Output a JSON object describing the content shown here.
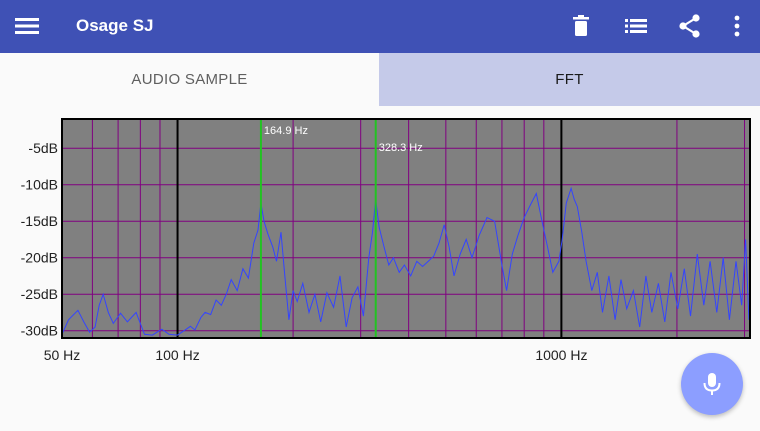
{
  "app": {
    "title": "Osage SJ",
    "colors": {
      "primary": "#3f51b5",
      "tab_selected_bg": "#c5cae9",
      "fab": "#8c9eff",
      "plot_bg": "#808080",
      "trace": "#3344ff",
      "grid": "#800080",
      "marker": "#22c322"
    }
  },
  "toolbar": {
    "menu_icon": "menu-icon",
    "actions": [
      "delete-icon",
      "list-icon",
      "share-icon",
      "more-vert-icon"
    ]
  },
  "tabs": [
    {
      "label": "AUDIO SAMPLE",
      "selected": false
    },
    {
      "label": "FFT",
      "selected": true
    }
  ],
  "fab": {
    "icon": "mic-icon"
  },
  "chart_data": {
    "type": "line",
    "title": "",
    "xscale": "log",
    "xlim": [
      50,
      3100
    ],
    "ylim": [
      -31,
      -1
    ],
    "x_tick_labels": [
      {
        "value": 50,
        "label": "50 Hz"
      },
      {
        "value": 100,
        "label": "100 Hz"
      },
      {
        "value": 1000,
        "label": "1000 Hz"
      }
    ],
    "y_tick_labels": [
      {
        "value": -5,
        "label": "-5dB"
      },
      {
        "value": -10,
        "label": "-10dB"
      },
      {
        "value": -15,
        "label": "-15dB"
      },
      {
        "value": -20,
        "label": "-20dB"
      },
      {
        "value": -25,
        "label": "-25dB"
      },
      {
        "value": -30,
        "label": "-30dB"
      }
    ],
    "markers": [
      {
        "freq": 164.9,
        "label": "164.9 Hz"
      },
      {
        "freq": 328.3,
        "label": "328.3 Hz"
      }
    ],
    "decade_lines": [
      100,
      1000
    ],
    "grid": true,
    "series": [
      {
        "points": [
          [
            50,
            -30.5
          ],
          [
            52,
            -28.5
          ],
          [
            55,
            -27.2
          ],
          [
            57,
            -28.8
          ],
          [
            59,
            -30.2
          ],
          [
            61,
            -29.5
          ],
          [
            62.5,
            -26.5
          ],
          [
            64,
            -25.0
          ],
          [
            66,
            -27.5
          ],
          [
            68,
            -29.0
          ],
          [
            71,
            -27.6
          ],
          [
            74,
            -28.8
          ],
          [
            78,
            -27.5
          ],
          [
            82,
            -30.5
          ],
          [
            86,
            -30.6
          ],
          [
            91,
            -29.8
          ],
          [
            95,
            -30.5
          ],
          [
            100,
            -30.6
          ],
          [
            104,
            -30.0
          ],
          [
            108,
            -29.4
          ],
          [
            111,
            -29.9
          ],
          [
            115,
            -28.2
          ],
          [
            118,
            -27.5
          ],
          [
            122,
            -27.8
          ],
          [
            126,
            -25.8
          ],
          [
            130,
            -26.5
          ],
          [
            134,
            -25.0
          ],
          [
            138,
            -23.0
          ],
          [
            143,
            -24.5
          ],
          [
            148,
            -21.5
          ],
          [
            153,
            -22.8
          ],
          [
            158,
            -18.0
          ],
          [
            162,
            -16.2
          ],
          [
            164.9,
            -12.5
          ],
          [
            168,
            -15.0
          ],
          [
            172,
            -16.8
          ],
          [
            177,
            -18.5
          ],
          [
            181,
            -20.5
          ],
          [
            186,
            -16.5
          ],
          [
            190,
            -22.0
          ],
          [
            195,
            -28.5
          ],
          [
            200,
            -24.5
          ],
          [
            205,
            -26.0
          ],
          [
            212,
            -23.5
          ],
          [
            220,
            -27.5
          ],
          [
            228,
            -25.0
          ],
          [
            236,
            -28.8
          ],
          [
            245,
            -24.8
          ],
          [
            255,
            -26.8
          ],
          [
            265,
            -22.5
          ],
          [
            275,
            -29.5
          ],
          [
            285,
            -25.5
          ],
          [
            295,
            -24.0
          ],
          [
            305,
            -28.0
          ],
          [
            315,
            -20.0
          ],
          [
            322,
            -16.5
          ],
          [
            328.3,
            -12.0
          ],
          [
            335,
            -15.8
          ],
          [
            345,
            -18.5
          ],
          [
            355,
            -21.0
          ],
          [
            365,
            -20.0
          ],
          [
            378,
            -22.0
          ],
          [
            390,
            -21.0
          ],
          [
            405,
            -22.5
          ],
          [
            420,
            -20.5
          ],
          [
            435,
            -21.2
          ],
          [
            450,
            -20.5
          ],
          [
            465,
            -19.8
          ],
          [
            480,
            -18.0
          ],
          [
            495,
            -15.5
          ],
          [
            510,
            -18.5
          ],
          [
            525,
            -22.5
          ],
          [
            545,
            -19.5
          ],
          [
            565,
            -17.5
          ],
          [
            585,
            -20.0
          ],
          [
            610,
            -17.0
          ],
          [
            640,
            -14.5
          ],
          [
            670,
            -15.0
          ],
          [
            700,
            -21.0
          ],
          [
            720,
            -24.5
          ],
          [
            745,
            -19.5
          ],
          [
            770,
            -17.0
          ],
          [
            800,
            -14.5
          ],
          [
            830,
            -12.8
          ],
          [
            860,
            -11.2
          ],
          [
            890,
            -15.0
          ],
          [
            920,
            -18.5
          ],
          [
            950,
            -22.0
          ],
          [
            985,
            -20.5
          ],
          [
            1005,
            -17.5
          ],
          [
            1030,
            -12.5
          ],
          [
            1060,
            -10.5
          ],
          [
            1080,
            -12.0
          ],
          [
            1100,
            -13.0
          ],
          [
            1130,
            -16.5
          ],
          [
            1160,
            -20.5
          ],
          [
            1200,
            -24.5
          ],
          [
            1240,
            -22.0
          ],
          [
            1280,
            -27.5
          ],
          [
            1330,
            -22.5
          ],
          [
            1380,
            -28.5
          ],
          [
            1430,
            -23.0
          ],
          [
            1480,
            -27.0
          ],
          [
            1540,
            -24.5
          ],
          [
            1600,
            -29.5
          ],
          [
            1660,
            -22.5
          ],
          [
            1720,
            -27.5
          ],
          [
            1790,
            -23.5
          ],
          [
            1860,
            -28.8
          ],
          [
            1930,
            -22.0
          ],
          [
            2010,
            -27.0
          ],
          [
            2090,
            -21.5
          ],
          [
            2170,
            -28.0
          ],
          [
            2260,
            -19.5
          ],
          [
            2350,
            -26.5
          ],
          [
            2440,
            -20.5
          ],
          [
            2540,
            -27.5
          ],
          [
            2640,
            -20.0
          ],
          [
            2740,
            -28.5
          ],
          [
            2850,
            -20.5
          ],
          [
            2950,
            -26.5
          ],
          [
            3020,
            -17.5
          ],
          [
            3080,
            -28.5
          ]
        ]
      }
    ]
  }
}
